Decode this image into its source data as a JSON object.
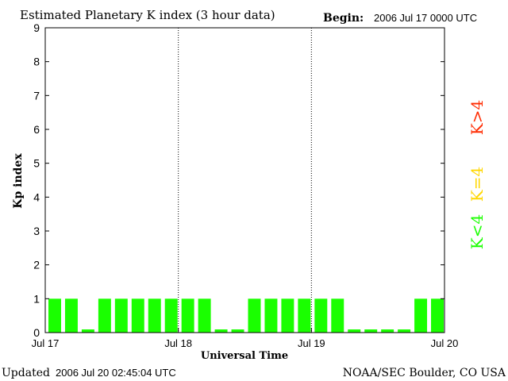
{
  "chart_data": {
    "type": "bar",
    "title": "Estimated Planetary K index (3 hour data)",
    "begin_label": "Begin:",
    "begin_value": "2006 Jul 17 0000 UTC",
    "xlabel": "Universal Time",
    "ylabel": "Kp index",
    "ylim": [
      0,
      9
    ],
    "yticks": [
      "0",
      "1",
      "2",
      "3",
      "4",
      "5",
      "6",
      "7",
      "8",
      "9"
    ],
    "xticks": [
      "Jul 17",
      "Jul 18",
      "Jul 19",
      "Jul 20"
    ],
    "interval_hours": 3,
    "values": [
      1,
      1,
      0,
      1,
      1,
      1,
      1,
      1,
      1,
      1,
      0,
      0,
      1,
      1,
      1,
      1,
      1,
      1,
      0,
      0,
      0,
      0,
      1,
      1
    ],
    "bar_color": "#1aff00",
    "grid": "dotted vertical lines at day boundaries",
    "legend": [
      {
        "label": "K>4",
        "color": "#ff2a00"
      },
      {
        "label": "K=4",
        "color": "#ffd700"
      },
      {
        "label": "K<4",
        "color": "#1aff00"
      }
    ],
    "legend_placement": "right"
  },
  "footer": {
    "updated_label": "Updated",
    "updated_value": "2006 Jul 20 02:45:04 UTC",
    "source": "NOAA/SEC Boulder, CO USA"
  }
}
